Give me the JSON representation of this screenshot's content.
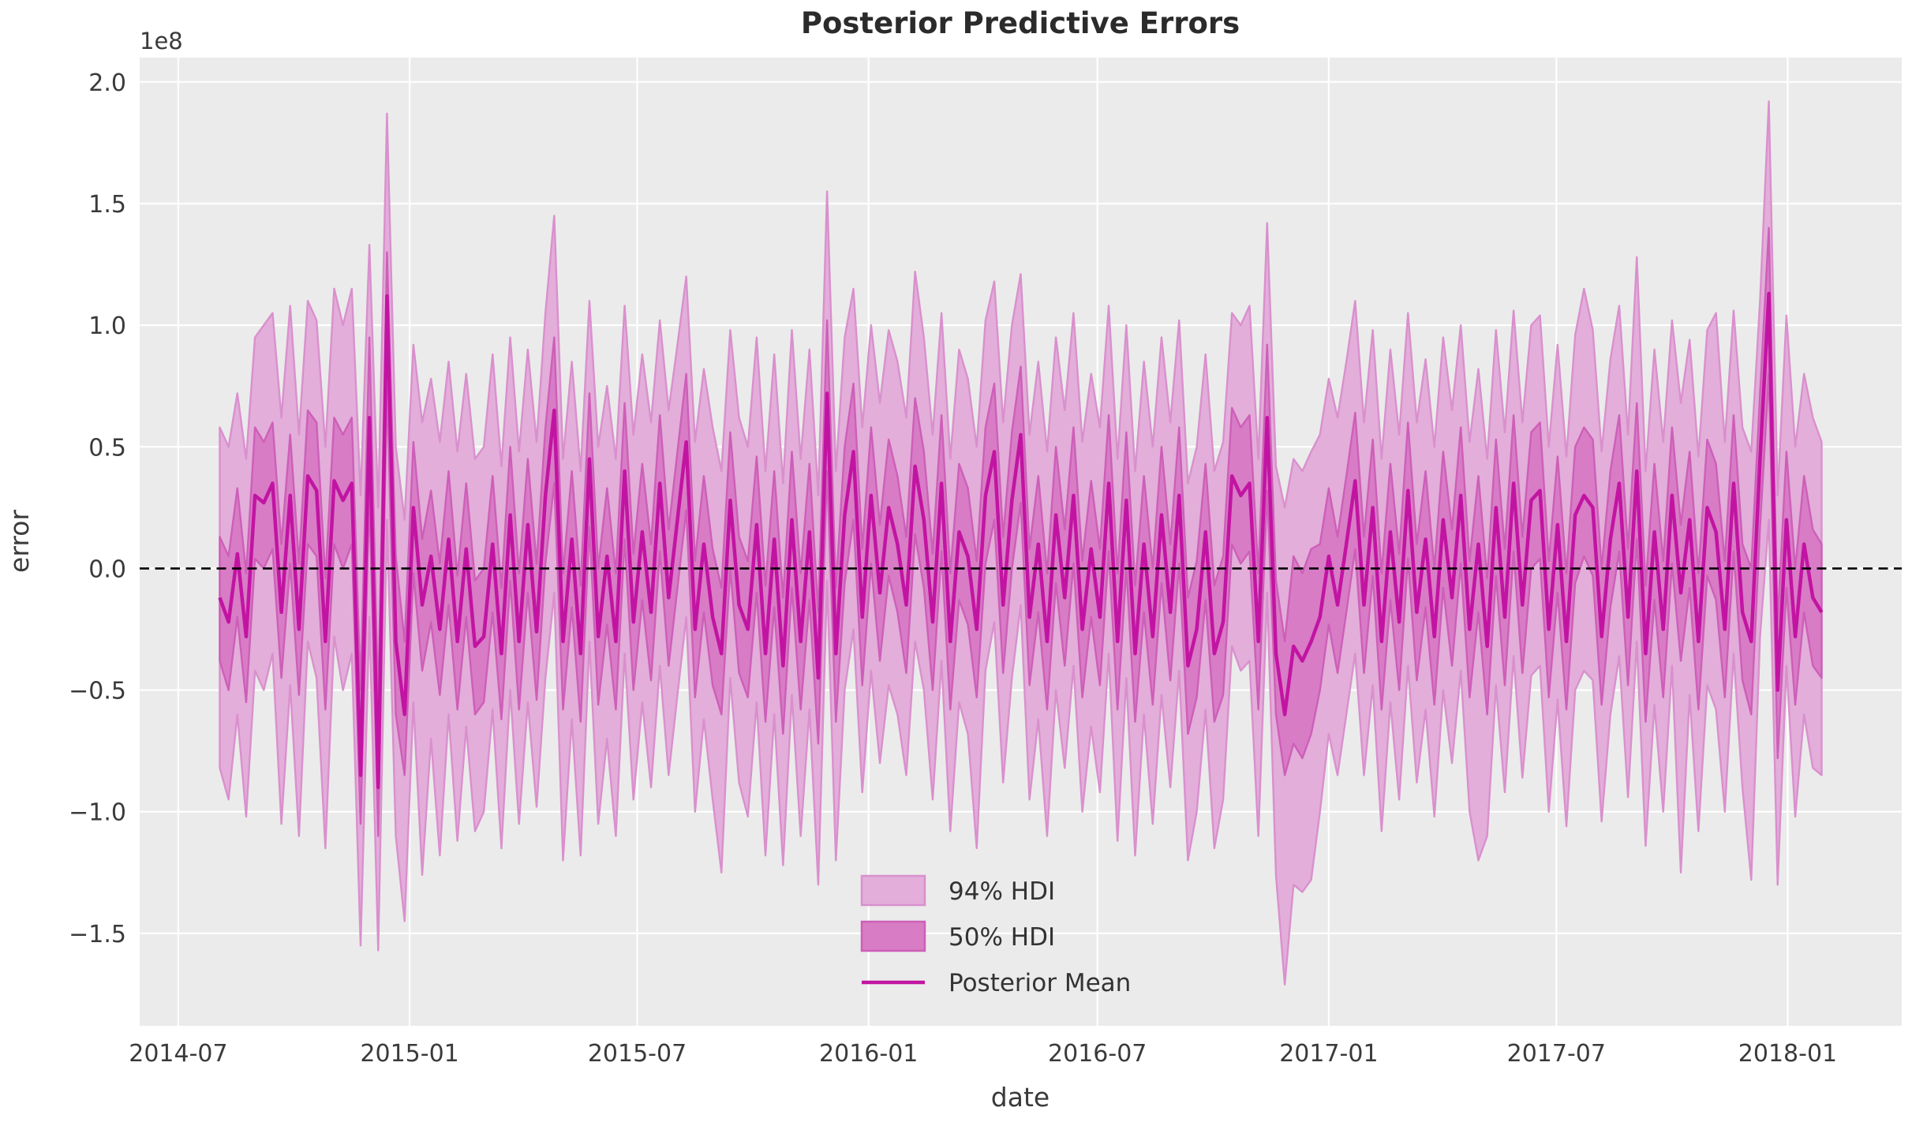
{
  "page": {
    "background": "#ffffff"
  },
  "chart_data": {
    "type": "area",
    "title": "Posterior Predictive Errors",
    "xlabel": "date",
    "ylabel": "error",
    "offset_text": "1e8",
    "value_unit": "1e8",
    "grid": true,
    "legend_position": "lower center",
    "legend": [
      {
        "label": "94% HDI",
        "kind": "band94"
      },
      {
        "label": "50% HDI",
        "kind": "band50"
      },
      {
        "label": "Posterior Mean",
        "kind": "line"
      }
    ],
    "colors": {
      "figure_bg": "#ffffff",
      "plot_bg": "#ebebeb",
      "grid": "#ffffff",
      "band94_fill": "#e3aeda",
      "band94_edge": "#d990cd",
      "band50_fill": "#d87cc6",
      "band50_edge": "#cd5fb8",
      "mean_line": "#c214a2",
      "zero_line": "#000000",
      "tick_text": "#3a3a3a",
      "title_text": "#2b2b2b"
    },
    "x_start_date": "2014-08-03",
    "x_step_days": 7,
    "x_ticks": [
      {
        "label": "2014-07",
        "day": -33
      },
      {
        "label": "2015-01",
        "day": 151
      },
      {
        "label": "2015-07",
        "day": 332
      },
      {
        "label": "2016-01",
        "day": 516
      },
      {
        "label": "2016-07",
        "day": 698
      },
      {
        "label": "2017-01",
        "day": 882
      },
      {
        "label": "2017-07",
        "day": 1063
      },
      {
        "label": "2018-01",
        "day": 1247
      }
    ],
    "y_ticks": [
      {
        "label": "2.0",
        "value": 2.0
      },
      {
        "label": "1.5",
        "value": 1.5
      },
      {
        "label": "1.0",
        "value": 1.0
      },
      {
        "label": "0.5",
        "value": 0.5
      },
      {
        "label": "0.0",
        "value": 0.0
      },
      {
        "label": "−0.5",
        "value": -0.5
      },
      {
        "label": "−1.0",
        "value": -1.0
      },
      {
        "label": "−1.5",
        "value": -1.5
      }
    ],
    "xlim_days": [
      -63.7,
      1337.7
    ],
    "ylim": [
      -1.88,
      2.1
    ],
    "zero_reference": 0.0,
    "point_format": [
      "mean",
      "hdi50_lo",
      "hdi50_hi",
      "hdi94_lo",
      "hdi94_hi"
    ],
    "points": [
      [
        -0.12,
        -0.38,
        0.13,
        -0.82,
        0.58
      ],
      [
        -0.22,
        -0.5,
        0.05,
        -0.95,
        0.5
      ],
      [
        0.06,
        -0.2,
        0.33,
        -0.6,
        0.72
      ],
      [
        -0.28,
        -0.55,
        -0.02,
        -1.02,
        0.45
      ],
      [
        0.3,
        0.04,
        0.58,
        -0.42,
        0.95
      ],
      [
        0.27,
        0.0,
        0.52,
        -0.5,
        1.0
      ],
      [
        0.35,
        0.08,
        0.6,
        -0.35,
        1.05
      ],
      [
        -0.18,
        -0.45,
        0.1,
        -1.05,
        0.62
      ],
      [
        0.3,
        0.02,
        0.55,
        -0.48,
        1.08
      ],
      [
        -0.25,
        -0.52,
        0.02,
        -1.1,
        0.55
      ],
      [
        0.38,
        0.1,
        0.65,
        -0.3,
        1.1
      ],
      [
        0.32,
        0.05,
        0.6,
        -0.45,
        1.02
      ],
      [
        -0.3,
        -0.58,
        -0.04,
        -1.15,
        0.5
      ],
      [
        0.36,
        0.1,
        0.62,
        -0.28,
        1.15
      ],
      [
        0.28,
        0.0,
        0.55,
        -0.5,
        1.0
      ],
      [
        0.35,
        0.1,
        0.62,
        -0.35,
        1.15
      ],
      [
        -0.85,
        -1.05,
        -0.5,
        -1.55,
        0.3
      ],
      [
        0.62,
        0.3,
        0.95,
        -0.2,
        1.33
      ],
      [
        -0.9,
        -1.1,
        -0.55,
        -1.57,
        0.25
      ],
      [
        1.12,
        0.75,
        1.3,
        0.2,
        1.87
      ],
      [
        -0.3,
        -0.6,
        0.05,
        -1.1,
        0.5
      ],
      [
        -0.6,
        -0.85,
        -0.3,
        -1.45,
        0.2
      ],
      [
        0.25,
        -0.02,
        0.52,
        -0.55,
        0.92
      ],
      [
        -0.15,
        -0.42,
        0.12,
        -1.26,
        0.6
      ],
      [
        0.05,
        -0.22,
        0.32,
        -0.7,
        0.78
      ],
      [
        -0.25,
        -0.52,
        0.02,
        -1.18,
        0.52
      ],
      [
        0.12,
        -0.15,
        0.4,
        -0.6,
        0.85
      ],
      [
        -0.3,
        -0.58,
        -0.03,
        -1.12,
        0.48
      ],
      [
        0.08,
        -0.2,
        0.35,
        -0.65,
        0.8
      ],
      [
        -0.32,
        -0.6,
        -0.05,
        -1.08,
        0.45
      ],
      [
        -0.28,
        -0.55,
        0.0,
        -1.0,
        0.5
      ],
      [
        0.1,
        -0.18,
        0.38,
        -0.58,
        0.88
      ],
      [
        -0.35,
        -0.62,
        -0.08,
        -1.15,
        0.42
      ],
      [
        0.22,
        -0.05,
        0.5,
        -0.5,
        0.95
      ],
      [
        -0.3,
        -0.58,
        -0.02,
        -1.05,
        0.48
      ],
      [
        0.18,
        -0.1,
        0.45,
        -0.55,
        0.9
      ],
      [
        -0.26,
        -0.54,
        0.02,
        -0.98,
        0.52
      ],
      [
        0.3,
        0.02,
        0.58,
        -0.45,
        1.05
      ],
      [
        0.65,
        0.35,
        0.95,
        -0.1,
        1.45
      ],
      [
        -0.3,
        -0.58,
        -0.02,
        -1.2,
        0.45
      ],
      [
        0.12,
        -0.16,
        0.4,
        -0.62,
        0.85
      ],
      [
        -0.35,
        -0.63,
        -0.07,
        -1.18,
        0.4
      ],
      [
        0.45,
        0.17,
        0.72,
        -0.3,
        1.1
      ],
      [
        -0.28,
        -0.56,
        0.0,
        -1.05,
        0.5
      ],
      [
        0.05,
        -0.23,
        0.33,
        -0.7,
        0.75
      ],
      [
        -0.3,
        -0.58,
        -0.02,
        -1.1,
        0.45
      ],
      [
        0.4,
        0.12,
        0.68,
        -0.35,
        1.08
      ],
      [
        -0.22,
        -0.5,
        0.06,
        -0.95,
        0.55
      ],
      [
        0.15,
        -0.13,
        0.43,
        -0.55,
        0.88
      ],
      [
        -0.18,
        -0.46,
        0.1,
        -0.9,
        0.6
      ],
      [
        0.35,
        0.07,
        0.63,
        -0.4,
        1.02
      ],
      [
        -0.12,
        -0.4,
        0.16,
        -0.85,
        0.65
      ],
      [
        0.2,
        -0.08,
        0.48,
        -0.52,
        0.92
      ],
      [
        0.52,
        0.24,
        0.8,
        -0.2,
        1.2
      ],
      [
        -0.25,
        -0.53,
        0.03,
        -1.0,
        0.52
      ],
      [
        0.1,
        -0.18,
        0.38,
        -0.62,
        0.82
      ],
      [
        -0.2,
        -0.48,
        0.08,
        -0.95,
        0.58
      ],
      [
        -0.35,
        -0.6,
        -0.08,
        -1.25,
        0.4
      ],
      [
        0.28,
        0.0,
        0.56,
        -0.45,
        0.98
      ],
      [
        -0.15,
        -0.43,
        0.13,
        -0.88,
        0.62
      ],
      [
        -0.25,
        -0.53,
        0.03,
        -1.02,
        0.5
      ],
      [
        0.18,
        -0.1,
        0.46,
        -0.55,
        0.95
      ],
      [
        -0.35,
        -0.63,
        -0.07,
        -1.18,
        0.4
      ],
      [
        0.12,
        -0.16,
        0.4,
        -0.6,
        0.88
      ],
      [
        -0.4,
        -0.68,
        -0.12,
        -1.22,
        0.35
      ],
      [
        0.2,
        -0.08,
        0.48,
        -0.52,
        0.98
      ],
      [
        -0.3,
        -0.58,
        -0.02,
        -1.1,
        0.45
      ],
      [
        0.15,
        -0.13,
        0.43,
        -0.58,
        0.9
      ],
      [
        -0.45,
        -0.72,
        -0.18,
        -1.3,
        0.3
      ],
      [
        0.72,
        0.4,
        1.02,
        -0.05,
        1.55
      ],
      [
        -0.35,
        -0.63,
        -0.08,
        -1.2,
        0.4
      ],
      [
        0.22,
        -0.06,
        0.5,
        -0.5,
        0.95
      ],
      [
        0.48,
        0.2,
        0.76,
        -0.25,
        1.15
      ],
      [
        -0.2,
        -0.48,
        0.08,
        -0.92,
        0.58
      ],
      [
        0.3,
        0.02,
        0.58,
        -0.42,
        1.0
      ],
      [
        -0.1,
        -0.38,
        0.18,
        -0.8,
        0.68
      ],
      [
        0.25,
        -0.03,
        0.53,
        -0.48,
        0.98
      ],
      [
        0.1,
        -0.18,
        0.38,
        -0.6,
        0.85
      ],
      [
        -0.15,
        -0.43,
        0.13,
        -0.85,
        0.62
      ],
      [
        0.42,
        0.14,
        0.7,
        -0.3,
        1.22
      ],
      [
        0.2,
        -0.08,
        0.48,
        -0.5,
        0.95
      ],
      [
        -0.22,
        -0.5,
        0.06,
        -0.95,
        0.55
      ],
      [
        0.35,
        0.07,
        0.63,
        -0.38,
        1.05
      ],
      [
        -0.3,
        -0.58,
        -0.02,
        -1.08,
        0.45
      ],
      [
        0.15,
        -0.13,
        0.43,
        -0.55,
        0.9
      ],
      [
        0.05,
        -0.23,
        0.33,
        -0.68,
        0.78
      ],
      [
        -0.25,
        -0.53,
        0.03,
        -1.15,
        0.5
      ],
      [
        0.3,
        0.02,
        0.58,
        -0.42,
        1.02
      ],
      [
        0.48,
        0.2,
        0.76,
        -0.22,
        1.18
      ],
      [
        -0.15,
        -0.43,
        0.13,
        -0.88,
        0.6
      ],
      [
        0.28,
        0.0,
        0.56,
        -0.45,
        1.0
      ],
      [
        0.55,
        0.27,
        0.83,
        -0.15,
        1.21
      ],
      [
        -0.2,
        -0.48,
        0.08,
        -0.95,
        0.55
      ],
      [
        0.1,
        -0.18,
        0.38,
        -0.62,
        0.85
      ],
      [
        -0.3,
        -0.58,
        -0.02,
        -1.1,
        0.48
      ],
      [
        0.22,
        -0.06,
        0.5,
        -0.5,
        0.95
      ],
      [
        -0.12,
        -0.4,
        0.16,
        -0.82,
        0.65
      ],
      [
        0.3,
        0.02,
        0.58,
        -0.4,
        1.05
      ],
      [
        -0.25,
        -0.53,
        0.03,
        -1.0,
        0.52
      ],
      [
        0.08,
        -0.2,
        0.36,
        -0.65,
        0.8
      ],
      [
        -0.2,
        -0.48,
        0.08,
        -0.92,
        0.58
      ],
      [
        0.35,
        0.07,
        0.63,
        -0.35,
        1.08
      ],
      [
        -0.3,
        -0.58,
        -0.02,
        -1.12,
        0.45
      ],
      [
        0.28,
        0.0,
        0.56,
        -0.45,
        1.0
      ],
      [
        -0.35,
        -0.63,
        -0.07,
        -1.18,
        0.4
      ],
      [
        0.1,
        -0.18,
        0.38,
        -0.6,
        0.85
      ],
      [
        -0.28,
        -0.56,
        0.0,
        -1.05,
        0.5
      ],
      [
        0.22,
        -0.06,
        0.5,
        -0.52,
        0.95
      ],
      [
        -0.18,
        -0.46,
        0.1,
        -0.9,
        0.6
      ],
      [
        0.3,
        0.02,
        0.58,
        -0.42,
        1.02
      ],
      [
        -0.4,
        -0.68,
        -0.12,
        -1.2,
        0.35
      ],
      [
        -0.25,
        -0.53,
        0.03,
        -1.0,
        0.5
      ],
      [
        0.15,
        -0.13,
        0.43,
        -0.58,
        0.88
      ],
      [
        -0.35,
        -0.63,
        -0.07,
        -1.15,
        0.4
      ],
      [
        -0.22,
        -0.52,
        0.05,
        -0.95,
        0.52
      ],
      [
        0.38,
        0.1,
        0.66,
        -0.32,
        1.05
      ],
      [
        0.3,
        0.02,
        0.58,
        -0.42,
        1.0
      ],
      [
        0.35,
        0.07,
        0.63,
        -0.38,
        1.08
      ],
      [
        -0.3,
        -0.58,
        -0.02,
        -1.1,
        0.45
      ],
      [
        0.62,
        0.32,
        0.92,
        -0.1,
        1.42
      ],
      [
        -0.35,
        -0.6,
        -0.05,
        -1.26,
        0.42
      ],
      [
        -0.6,
        -0.85,
        -0.3,
        -1.71,
        0.25
      ],
      [
        -0.32,
        -0.72,
        0.05,
        -1.3,
        0.45
      ],
      [
        -0.38,
        -0.78,
        -0.02,
        -1.33,
        0.4
      ],
      [
        -0.3,
        -0.68,
        0.08,
        -1.28,
        0.48
      ],
      [
        -0.2,
        -0.5,
        0.1,
        -1.0,
        0.55
      ],
      [
        0.05,
        -0.23,
        0.33,
        -0.68,
        0.78
      ],
      [
        -0.15,
        -0.43,
        0.13,
        -0.85,
        0.62
      ],
      [
        0.1,
        -0.18,
        0.38,
        -0.6,
        0.85
      ],
      [
        0.36,
        0.08,
        0.64,
        -0.35,
        1.1
      ],
      [
        -0.15,
        -0.43,
        0.13,
        -0.85,
        0.6
      ],
      [
        0.25,
        -0.03,
        0.53,
        -0.48,
        0.98
      ],
      [
        -0.3,
        -0.58,
        -0.02,
        -1.08,
        0.45
      ],
      [
        0.15,
        -0.13,
        0.43,
        -0.55,
        0.9
      ],
      [
        -0.22,
        -0.5,
        0.06,
        -0.95,
        0.55
      ],
      [
        0.32,
        0.04,
        0.6,
        -0.4,
        1.05
      ],
      [
        -0.18,
        -0.46,
        0.1,
        -0.88,
        0.6
      ],
      [
        0.12,
        -0.16,
        0.4,
        -0.58,
        0.86
      ],
      [
        -0.28,
        -0.56,
        0.0,
        -1.02,
        0.5
      ],
      [
        0.2,
        -0.08,
        0.48,
        -0.5,
        0.95
      ],
      [
        -0.12,
        -0.4,
        0.16,
        -0.8,
        0.65
      ],
      [
        0.3,
        0.02,
        0.58,
        -0.42,
        1.0
      ],
      [
        -0.25,
        -0.53,
        0.03,
        -1.0,
        0.52
      ],
      [
        0.1,
        -0.18,
        0.38,
        -1.2,
        0.82
      ],
      [
        -0.32,
        -0.6,
        -0.04,
        -1.1,
        0.45
      ],
      [
        0.25,
        -0.03,
        0.53,
        -0.48,
        0.98
      ],
      [
        -0.2,
        -0.48,
        0.08,
        -0.92,
        0.56
      ],
      [
        0.35,
        0.07,
        0.63,
        -0.36,
        1.06
      ],
      [
        -0.15,
        -0.43,
        0.13,
        -0.86,
        0.6
      ],
      [
        0.28,
        0.0,
        0.56,
        -0.44,
        1.0
      ],
      [
        0.32,
        0.04,
        0.6,
        -0.4,
        1.04
      ],
      [
        -0.25,
        -0.53,
        0.03,
        -1.0,
        0.5
      ],
      [
        0.18,
        -0.1,
        0.46,
        -0.54,
        0.92
      ],
      [
        -0.3,
        -0.58,
        -0.02,
        -1.06,
        0.46
      ],
      [
        0.22,
        -0.06,
        0.5,
        -0.5,
        0.96
      ],
      [
        0.3,
        0.05,
        0.58,
        -0.42,
        1.15
      ],
      [
        0.25,
        -0.03,
        0.53,
        -0.46,
        0.98
      ],
      [
        -0.28,
        -0.56,
        0.0,
        -1.04,
        0.48
      ],
      [
        0.12,
        -0.16,
        0.4,
        -0.6,
        0.86
      ],
      [
        0.35,
        0.07,
        0.63,
        -0.36,
        1.08
      ],
      [
        -0.2,
        -0.48,
        0.08,
        -0.94,
        0.55
      ],
      [
        0.4,
        0.12,
        0.68,
        -0.3,
        1.28
      ],
      [
        -0.35,
        -0.63,
        -0.07,
        -1.14,
        0.4
      ],
      [
        0.15,
        -0.13,
        0.43,
        -0.56,
        0.9
      ],
      [
        -0.25,
        -0.53,
        0.03,
        -1.0,
        0.52
      ],
      [
        0.3,
        0.02,
        0.58,
        -0.4,
        1.02
      ],
      [
        -0.1,
        -0.38,
        0.18,
        -1.25,
        0.68
      ],
      [
        0.2,
        -0.08,
        0.48,
        -0.52,
        0.94
      ],
      [
        -0.3,
        -0.58,
        -0.02,
        -1.08,
        0.46
      ],
      [
        0.25,
        -0.03,
        0.53,
        -0.48,
        0.98
      ],
      [
        0.15,
        -0.13,
        0.43,
        -0.58,
        1.05
      ],
      [
        -0.25,
        -0.53,
        0.03,
        -1.0,
        0.52
      ],
      [
        0.35,
        0.07,
        0.63,
        -0.35,
        1.06
      ],
      [
        -0.18,
        -0.46,
        0.1,
        -0.9,
        0.58
      ],
      [
        -0.3,
        -0.6,
        0.0,
        -1.28,
        0.48
      ],
      [
        0.45,
        0.17,
        0.72,
        -0.28,
        1.1
      ],
      [
        1.13,
        0.8,
        1.4,
        0.2,
        1.92
      ],
      [
        -0.5,
        -0.78,
        -0.22,
        -1.3,
        0.3
      ],
      [
        0.2,
        -0.08,
        0.48,
        -0.4,
        1.04
      ],
      [
        -0.28,
        -0.56,
        0.0,
        -1.02,
        0.5
      ],
      [
        0.1,
        -0.18,
        0.38,
        -0.6,
        0.8
      ],
      [
        -0.12,
        -0.4,
        0.16,
        -0.82,
        0.62
      ],
      [
        -0.18,
        -0.45,
        0.1,
        -0.85,
        0.52
      ]
    ]
  }
}
